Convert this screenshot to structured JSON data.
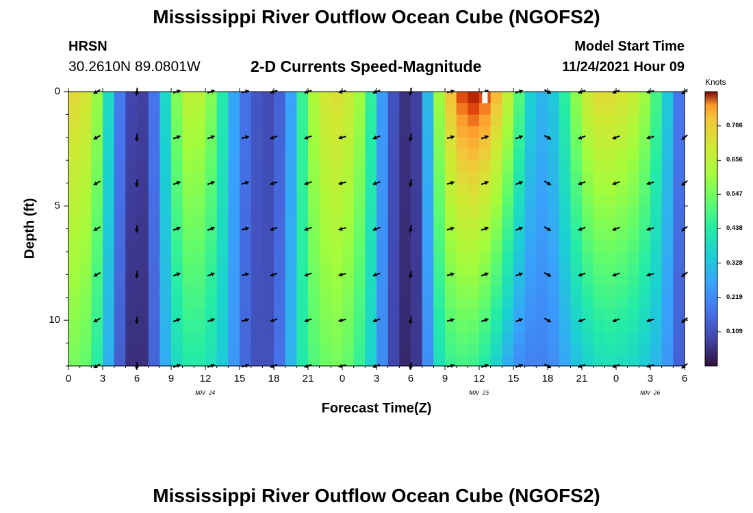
{
  "title": "Mississippi River Outflow Ocean Cube (NGOFS2)",
  "footer_title": "Mississippi River Outflow Ocean Cube (NGOFS2)",
  "station": {
    "name": "HRSN",
    "coords": "30.2610N  89.0801W"
  },
  "model": {
    "label": "Model Start Time",
    "value": "11/24/2021 Hour 09"
  },
  "chart_data": {
    "type": "heatmap",
    "title": "2-D Currents Speed-Magnitude",
    "xlabel": "Forecast Time(Z)",
    "ylabel": "Depth (ft)",
    "x_hours_range": [
      0,
      54
    ],
    "ylim": [
      0,
      12
    ],
    "y_inverted": true,
    "x_ticks": [
      {
        "hour": 0,
        "label": "0"
      },
      {
        "hour": 3,
        "label": "3"
      },
      {
        "hour": 6,
        "label": "6"
      },
      {
        "hour": 9,
        "label": "9"
      },
      {
        "hour": 12,
        "label": "12"
      },
      {
        "hour": 15,
        "label": "15"
      },
      {
        "hour": 18,
        "label": "18"
      },
      {
        "hour": 21,
        "label": "21"
      },
      {
        "hour": 24,
        "label": "0"
      },
      {
        "hour": 27,
        "label": "3"
      },
      {
        "hour": 30,
        "label": "6"
      },
      {
        "hour": 33,
        "label": "9"
      },
      {
        "hour": 36,
        "label": "12"
      },
      {
        "hour": 39,
        "label": "15"
      },
      {
        "hour": 42,
        "label": "18"
      },
      {
        "hour": 45,
        "label": "21"
      },
      {
        "hour": 48,
        "label": "0"
      },
      {
        "hour": 51,
        "label": "3"
      },
      {
        "hour": 54,
        "label": "6"
      }
    ],
    "y_ticks": [
      {
        "depth": 0,
        "label": "0"
      },
      {
        "depth": 5,
        "label": "5"
      },
      {
        "depth": 10,
        "label": "10"
      }
    ],
    "day_labels": [
      {
        "hour": 12,
        "label": "NOV 24"
      },
      {
        "hour": 36,
        "label": "NOV 25"
      },
      {
        "hour": 51,
        "label": "NOV 26"
      }
    ],
    "colorbar": {
      "units": "Knots",
      "range": [
        0,
        0.875
      ],
      "tick_labels": [
        "0.766",
        "0.656",
        "0.547",
        "0.438",
        "0.328",
        "0.219",
        "0.109"
      ]
    },
    "speed_profiles": [
      {
        "hour": 0,
        "surface": 0.72,
        "bottom": 0.55
      },
      {
        "hour": 1,
        "surface": 0.74,
        "bottom": 0.55
      },
      {
        "hour": 2,
        "surface": 0.68,
        "bottom": 0.5
      },
      {
        "hour": 3,
        "surface": 0.52,
        "bottom": 0.38
      },
      {
        "hour": 4,
        "surface": 0.25,
        "bottom": 0.2
      },
      {
        "hour": 5,
        "surface": 0.12,
        "bottom": 0.07
      },
      {
        "hour": 6,
        "surface": 0.06,
        "bottom": 0.03
      },
      {
        "hour": 7,
        "surface": 0.1,
        "bottom": 0.07
      },
      {
        "hour": 8,
        "surface": 0.25,
        "bottom": 0.22
      },
      {
        "hour": 9,
        "surface": 0.5,
        "bottom": 0.35
      },
      {
        "hour": 10,
        "surface": 0.64,
        "bottom": 0.42
      },
      {
        "hour": 11,
        "surface": 0.68,
        "bottom": 0.44
      },
      {
        "hour": 12,
        "surface": 0.62,
        "bottom": 0.42
      },
      {
        "hour": 13,
        "surface": 0.52,
        "bottom": 0.38
      },
      {
        "hour": 14,
        "surface": 0.34,
        "bottom": 0.3
      },
      {
        "hour": 15,
        "surface": 0.2,
        "bottom": 0.18
      },
      {
        "hour": 16,
        "surface": 0.14,
        "bottom": 0.12
      },
      {
        "hour": 17,
        "surface": 0.1,
        "bottom": 0.1
      },
      {
        "hour": 18,
        "surface": 0.1,
        "bottom": 0.12
      },
      {
        "hour": 19,
        "surface": 0.18,
        "bottom": 0.22
      },
      {
        "hour": 20,
        "surface": 0.35,
        "bottom": 0.38
      },
      {
        "hour": 21,
        "surface": 0.58,
        "bottom": 0.48
      },
      {
        "hour": 22,
        "surface": 0.68,
        "bottom": 0.52
      },
      {
        "hour": 23,
        "surface": 0.72,
        "bottom": 0.55
      },
      {
        "hour": 24,
        "surface": 0.72,
        "bottom": 0.55
      },
      {
        "hour": 25,
        "surface": 0.66,
        "bottom": 0.5
      },
      {
        "hour": 26,
        "surface": 0.56,
        "bottom": 0.42
      },
      {
        "hour": 27,
        "surface": 0.35,
        "bottom": 0.3
      },
      {
        "hour": 28,
        "surface": 0.15,
        "bottom": 0.13
      },
      {
        "hour": 29,
        "surface": 0.07,
        "bottom": 0.05
      },
      {
        "hour": 30,
        "surface": 0.04,
        "bottom": 0.03
      },
      {
        "hour": 31,
        "surface": 0.12,
        "bottom": 0.1
      },
      {
        "hour": 32,
        "surface": 0.5,
        "bottom": 0.35
      },
      {
        "hour": 33,
        "surface": 0.72,
        "bottom": 0.45
      },
      {
        "hour": 34,
        "surface": 0.82,
        "bottom": 0.48
      },
      {
        "hour": 35,
        "surface": 0.86,
        "bottom": 0.48
      },
      {
        "hour": 36,
        "surface": 0.86,
        "bottom": 0.46
      },
      {
        "hour": 37,
        "surface": 0.82,
        "bottom": 0.4
      },
      {
        "hour": 38,
        "surface": 0.74,
        "bottom": 0.32
      },
      {
        "hour": 39,
        "surface": 0.6,
        "bottom": 0.24
      },
      {
        "hour": 40,
        "surface": 0.42,
        "bottom": 0.2
      },
      {
        "hour": 41,
        "surface": 0.3,
        "bottom": 0.2
      },
      {
        "hour": 42,
        "surface": 0.3,
        "bottom": 0.2
      },
      {
        "hour": 43,
        "surface": 0.38,
        "bottom": 0.24
      },
      {
        "hour": 44,
        "surface": 0.52,
        "bottom": 0.3
      },
      {
        "hour": 45,
        "surface": 0.66,
        "bottom": 0.34
      },
      {
        "hour": 46,
        "surface": 0.72,
        "bottom": 0.38
      },
      {
        "hour": 47,
        "surface": 0.74,
        "bottom": 0.4
      },
      {
        "hour": 48,
        "surface": 0.72,
        "bottom": 0.4
      },
      {
        "hour": 49,
        "surface": 0.7,
        "bottom": 0.38
      },
      {
        "hour": 50,
        "surface": 0.66,
        "bottom": 0.36
      },
      {
        "hour": 51,
        "surface": 0.56,
        "bottom": 0.32
      },
      {
        "hour": 52,
        "surface": 0.42,
        "bottom": 0.28
      },
      {
        "hour": 53,
        "surface": 0.26,
        "bottom": 0.2
      },
      {
        "hour": 54,
        "surface": 0.1,
        "bottom": 0.08
      }
    ],
    "vector_depths": [
      0,
      2,
      4,
      6,
      8,
      10,
      12
    ],
    "vector_columns": [
      {
        "hour": 2.5,
        "angle_deg": 210
      },
      {
        "hour": 6,
        "angle_deg": 265
      },
      {
        "hour": 9.5,
        "angle_deg": 20
      },
      {
        "hour": 12.5,
        "angle_deg": 20
      },
      {
        "hour": 15.5,
        "angle_deg": 15
      },
      {
        "hour": 18,
        "angle_deg": 200
      },
      {
        "hour": 21,
        "angle_deg": 200
      },
      {
        "hour": 24,
        "angle_deg": 195
      },
      {
        "hour": 27,
        "angle_deg": 200
      },
      {
        "hour": 30,
        "angle_deg": 260
      },
      {
        "hour": 33.5,
        "angle_deg": 15
      },
      {
        "hour": 36.5,
        "angle_deg": 20
      },
      {
        "hour": 39.5,
        "angle_deg": 20
      },
      {
        "hour": 42,
        "angle_deg": 330
      },
      {
        "hour": 45,
        "angle_deg": 200
      },
      {
        "hour": 48,
        "angle_deg": 200
      },
      {
        "hour": 51,
        "angle_deg": 195
      },
      {
        "hour": 54,
        "angle_deg": 220
      }
    ],
    "marker_hour": 36.5
  }
}
